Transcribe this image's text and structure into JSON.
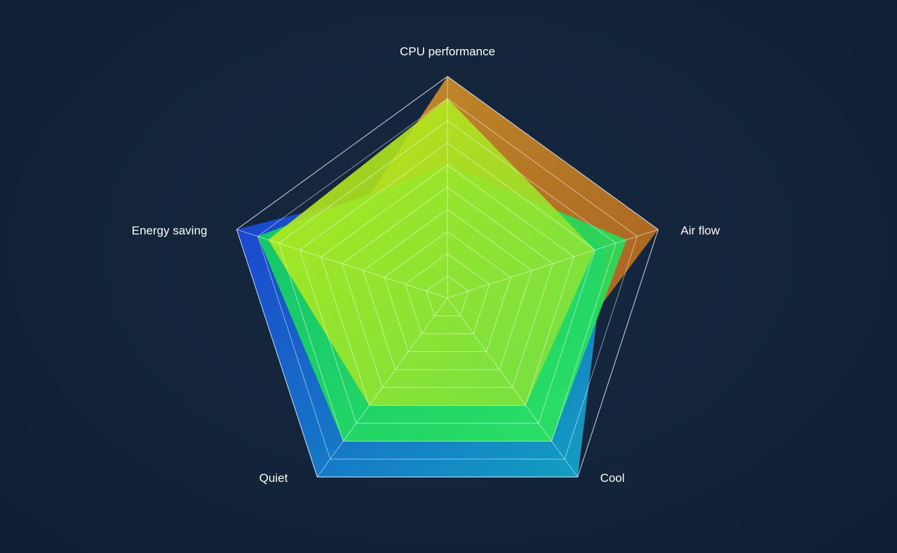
{
  "chart_data": {
    "type": "radar",
    "axes": [
      "CPU performance",
      "Air flow",
      "Cool",
      "Quiet",
      "Energy saving"
    ],
    "range": [
      0,
      10
    ],
    "rings": 10,
    "series": [
      {
        "values": [
          10,
          10,
          6,
          6,
          5.7
        ],
        "fill_start": "#e0a028",
        "fill_end": "#c0661a",
        "opacity": 0.85
      },
      {
        "values": [
          5.5,
          7.5,
          10,
          10,
          10
        ],
        "fill_start": "#1b3fd6",
        "fill_end": "#12a8c8",
        "opacity": 0.95
      },
      {
        "values": [
          6,
          8.5,
          8,
          8,
          9
        ],
        "fill_start": "#10d060",
        "fill_end": "#2fe85a",
        "opacity": 0.9
      },
      {
        "values": [
          9,
          7,
          6,
          6,
          8.5
        ],
        "fill_start": "#c8ee10",
        "fill_end": "#7be040",
        "opacity": 0.88
      }
    ],
    "grid_color": "#ffffff",
    "background": "#13243a"
  }
}
